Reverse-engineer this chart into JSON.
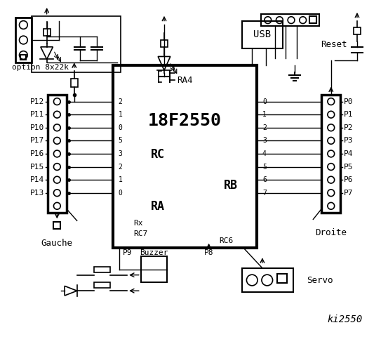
{
  "bg": "#ffffff",
  "chip_label": "18F2550",
  "chip_sublabel": "RA4",
  "rc_label": "RC",
  "ra_label": "RA",
  "rb_label": "RB",
  "left_pins": [
    "P12",
    "P11",
    "P10",
    "P17",
    "P16",
    "P15",
    "P14",
    "P13"
  ],
  "right_pins": [
    "P0",
    "P1",
    "P2",
    "P3",
    "P4",
    "P5",
    "P6",
    "P7"
  ],
  "rc_nums": [
    "2",
    "1",
    "0",
    "5",
    "3",
    "2",
    "1",
    "0"
  ],
  "rb_nums": [
    "0",
    "1",
    "2",
    "3",
    "4",
    "5",
    "6",
    "7"
  ],
  "option_label": "option 8x22k",
  "buzzer_label": "Buzzer",
  "p9_label": "P9",
  "p8_label": "P8",
  "servo_label": "Servo",
  "gauche_label": "Gauche",
  "droite_label": "Droite",
  "ki2550_label": "ki2550",
  "usb_label": "USB",
  "reset_label": "Reset",
  "rx_label": "Rx",
  "rc7_label": "RC7",
  "rc6_label": "RC6"
}
